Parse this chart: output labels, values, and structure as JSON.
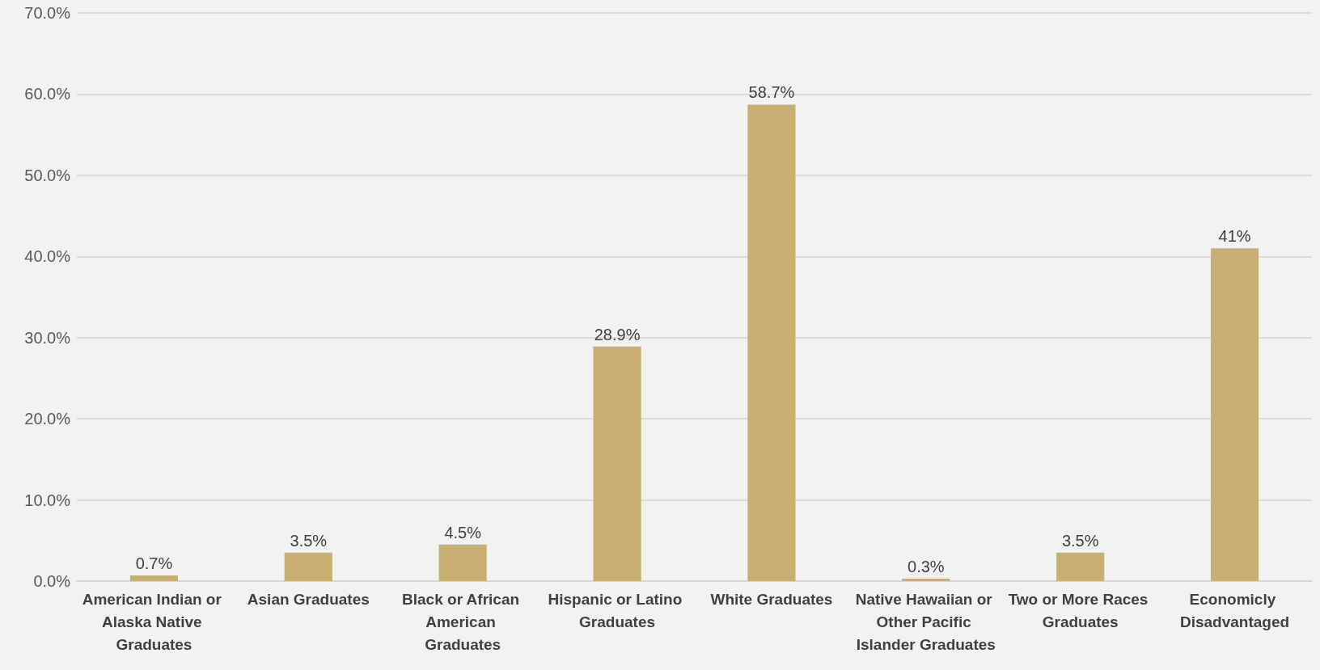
{
  "chart_data": {
    "type": "bar",
    "categories": [
      "American Indian or Alaska Native Graduates",
      "Asian Graduates",
      "Black or African American Graduates",
      "Hispanic or Latino Graduates",
      "White Graduates",
      "Native Hawaiian or Other Pacific Islander Graduates",
      "Two or More Races Graduates",
      "Economicly Disadvantaged"
    ],
    "values": [
      0.7,
      3.5,
      4.5,
      28.9,
      58.7,
      0.3,
      3.5,
      41
    ],
    "value_labels": [
      "0.7%",
      "3.5%",
      "4.5%",
      "28.9%",
      "58.7%",
      "0.3%",
      "3.5%",
      "41%"
    ],
    "color": "#c9b072",
    "ylim": [
      0,
      70
    ],
    "yticks": [
      {
        "value": 0,
        "label": "0.0%"
      },
      {
        "value": 10,
        "label": "10.0%"
      },
      {
        "value": 20,
        "label": "20.0%"
      },
      {
        "value": 30,
        "label": "30.0%"
      },
      {
        "value": 40,
        "label": "40.0%"
      },
      {
        "value": 50,
        "label": "50.0%"
      },
      {
        "value": 60,
        "label": "60.0%"
      },
      {
        "value": 70,
        "label": "70.0%"
      }
    ],
    "grid": true
  }
}
